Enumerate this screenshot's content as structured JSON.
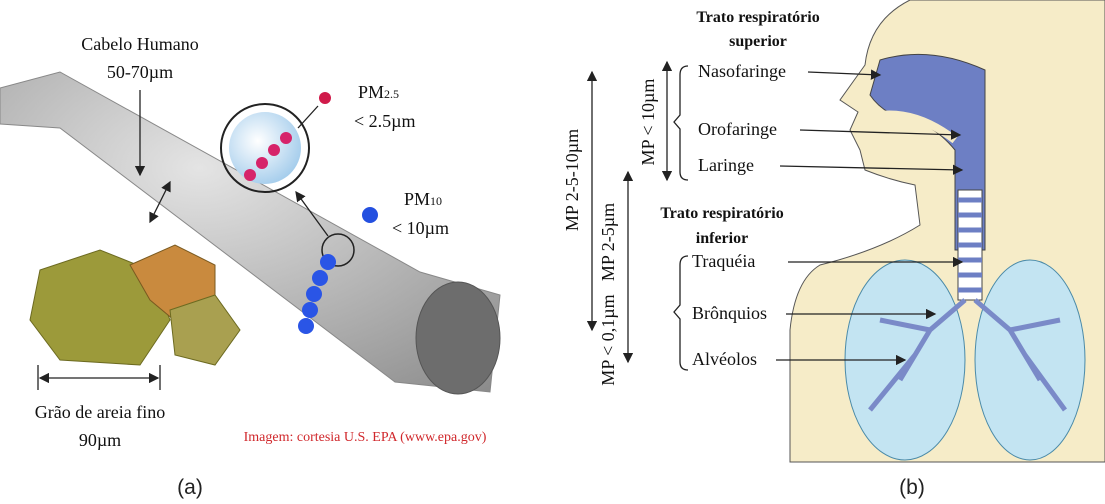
{
  "panel_a": {
    "hair": {
      "lines": [
        "Cabelo Humano",
        "50-70µm"
      ]
    },
    "pm25": {
      "label": "PM",
      "subscript": "2.5",
      "size": "< 2.5µm"
    },
    "pm10": {
      "label": "PM",
      "subscript": "10",
      "size": "< 10µm"
    },
    "sand": {
      "lines": [
        "Grão de areia fino",
        "90µm"
      ]
    },
    "credit": "Imagem: cortesia U.S. EPA (www.epa.gov)",
    "caption": "(a)"
  },
  "panel_b": {
    "upper": {
      "title": [
        "Trato respiratório",
        "superior"
      ],
      "labels": [
        "Nasofaringe",
        "Orofaringe",
        "Laringe"
      ]
    },
    "lower": {
      "title": [
        "Trato respiratório",
        "inferior"
      ],
      "labels": [
        "Traquéia",
        "Brônquios",
        "Alvéolos"
      ]
    },
    "ranges": [
      "MP 2-5-10µm",
      "MP 2-5µm",
      "MP < 10µm",
      "MP < 0,1µm"
    ],
    "caption": "(b)"
  }
}
